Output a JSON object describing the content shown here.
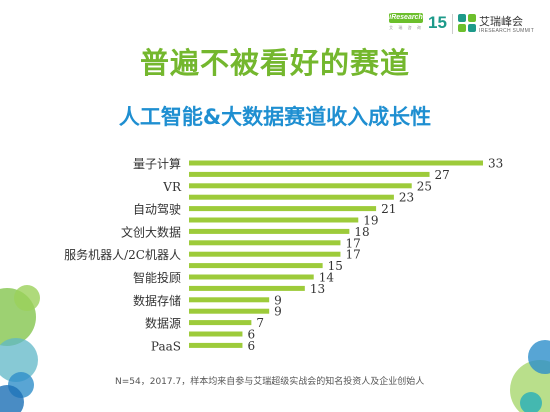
{
  "header": {
    "iresearch_logo_text": "iResearch",
    "iresearch_logo_sub": "艾 瑞 咨 询",
    "anniversary_text": "15",
    "summit_name": "艾瑞峰会",
    "summit_name_en": "IRESEARCH SUMMIT"
  },
  "title": "普遍不被看好的赛道",
  "footnote": "N=54，2017.7，样本均来自参与艾瑞超级实战会的知名投资人及企业创始人",
  "colors": {
    "bar": "#9dcb3a",
    "title": "#74b72e",
    "subtitle": "#1f8fd1",
    "tick_label": "#333333",
    "value_label": "#333333"
  },
  "chart_data": {
    "type": "bar",
    "orientation": "horizontal",
    "title": "人工智能&大数据赛道收入成长性",
    "xlabel": "",
    "ylabel": "",
    "xlim": [
      0,
      33
    ],
    "grid": false,
    "values": [
      33,
      27,
      25,
      23,
      21,
      19,
      18,
      17,
      17,
      15,
      14,
      13,
      9,
      9,
      7,
      6,
      6
    ],
    "category_labels": [
      {
        "index": 0,
        "text": "量子计算"
      },
      {
        "index": 2,
        "text": "VR"
      },
      {
        "index": 4,
        "text": "自动驾驶"
      },
      {
        "index": 6,
        "text": "文创大数据"
      },
      {
        "index": 8,
        "text": "服务机器人/2C机器人"
      },
      {
        "index": 10,
        "text": "智能投顾"
      },
      {
        "index": 12,
        "text": "数据存储"
      },
      {
        "index": 14,
        "text": "数据源"
      },
      {
        "index": 16,
        "text": "PaaS"
      }
    ]
  }
}
